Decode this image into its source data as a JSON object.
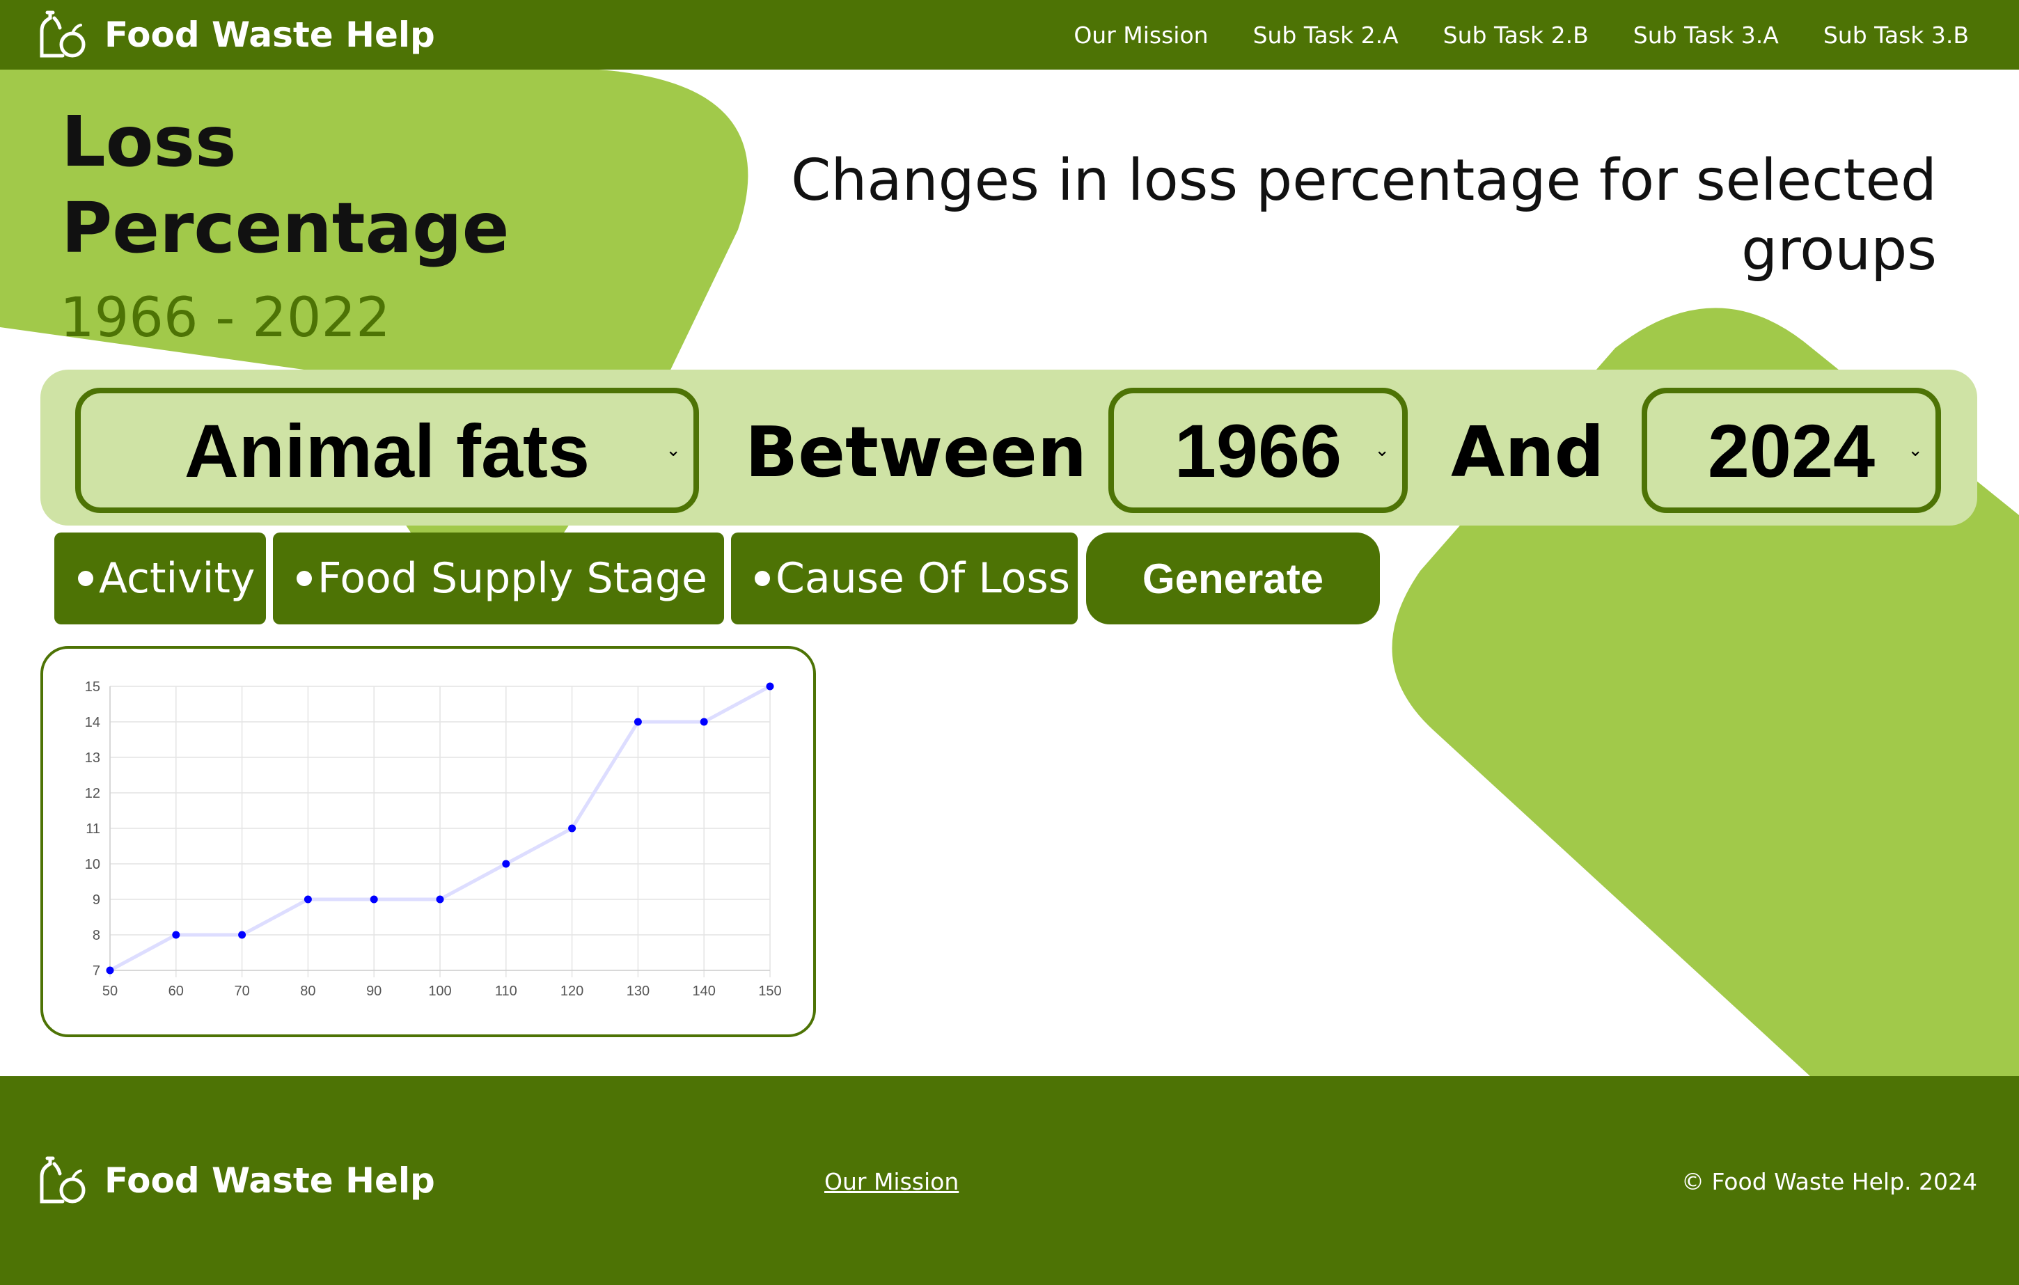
{
  "colors": {
    "dark_green": "#4d7305",
    "light_green": "#a1c94a",
    "pale_green": "#cfe3a5",
    "point": "#0000ff",
    "line": "#ddddff"
  },
  "brand": {
    "name": "Food Waste Help",
    "logo_icon": "bottle-apple-icon"
  },
  "nav": {
    "links": [
      "Our Mission",
      "Sub Task 2.A",
      "Sub Task 2.B",
      "Sub Task 3.A",
      "Sub Task 3.B"
    ]
  },
  "hero": {
    "title_line1": "Loss",
    "title_line2": "Percentage",
    "range": "1966 - 2022"
  },
  "subtitle": {
    "line1": "Changes in loss percentage for selected",
    "line2": "groups"
  },
  "selector": {
    "commodity": "Animal fats",
    "between_label": "Between",
    "start_year": "1966",
    "and_label": "And",
    "end_year": "2024",
    "caret_icon": "chevron-down-icon"
  },
  "options": {
    "activity": "Activity",
    "food_supply_stage": "Food Supply Stage",
    "cause_of_loss": "Cause Of Loss",
    "generate": "Generate"
  },
  "chart_data": {
    "type": "line",
    "title": "",
    "xlabel": "",
    "ylabel": "",
    "x": [
      50,
      60,
      70,
      80,
      90,
      100,
      110,
      120,
      130,
      140,
      150
    ],
    "series": [
      {
        "values": [
          7,
          8,
          8,
          9,
          9,
          9,
          10,
          11,
          14,
          14,
          15
        ]
      }
    ],
    "xlim": [
      50,
      150
    ],
    "ylim": [
      7,
      15
    ],
    "x_ticks": [
      50,
      60,
      70,
      80,
      90,
      100,
      110,
      120,
      130,
      140,
      150
    ],
    "y_ticks": [
      7,
      8,
      9,
      10,
      11,
      12,
      13,
      14,
      15
    ],
    "grid": true,
    "legend": "none"
  },
  "footer": {
    "link": "Our Mission",
    "copyright": "© Food Waste Help. 2024"
  }
}
